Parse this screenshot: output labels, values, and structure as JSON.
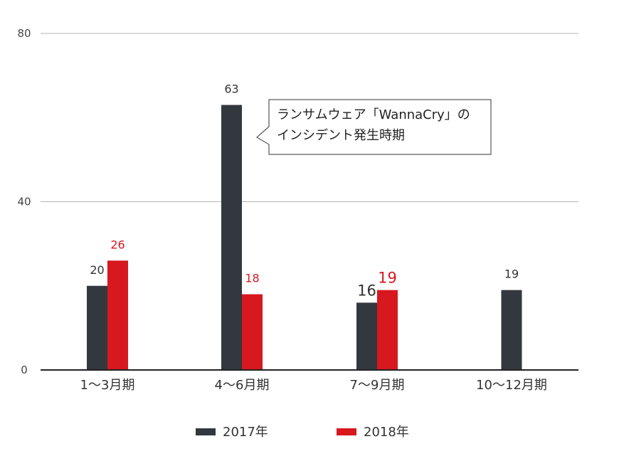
{
  "chart_data": {
    "type": "bar",
    "categories": [
      "1〜3月期",
      "4〜6月期",
      "7〜9月期",
      "10〜12月期"
    ],
    "series": [
      {
        "name": "2017年",
        "color": "#33383f",
        "values": [
          20,
          63,
          16,
          19
        ],
        "labels": [
          "20",
          "63",
          "16",
          "19"
        ]
      },
      {
        "name": "2018年",
        "color": "#d7181f",
        "values": [
          26,
          18,
          19,
          null
        ],
        "labels": [
          "26",
          "18",
          "19",
          ""
        ]
      }
    ],
    "ylim": [
      0,
      80
    ],
    "yticks": [
      0,
      40,
      80
    ],
    "grid": true,
    "legend_position": "bottom",
    "annotation": {
      "lines": [
        "ランサムウェア「WannaCry」の",
        "インシデント発生時期"
      ],
      "target_series": 0,
      "target_category": 1
    }
  }
}
